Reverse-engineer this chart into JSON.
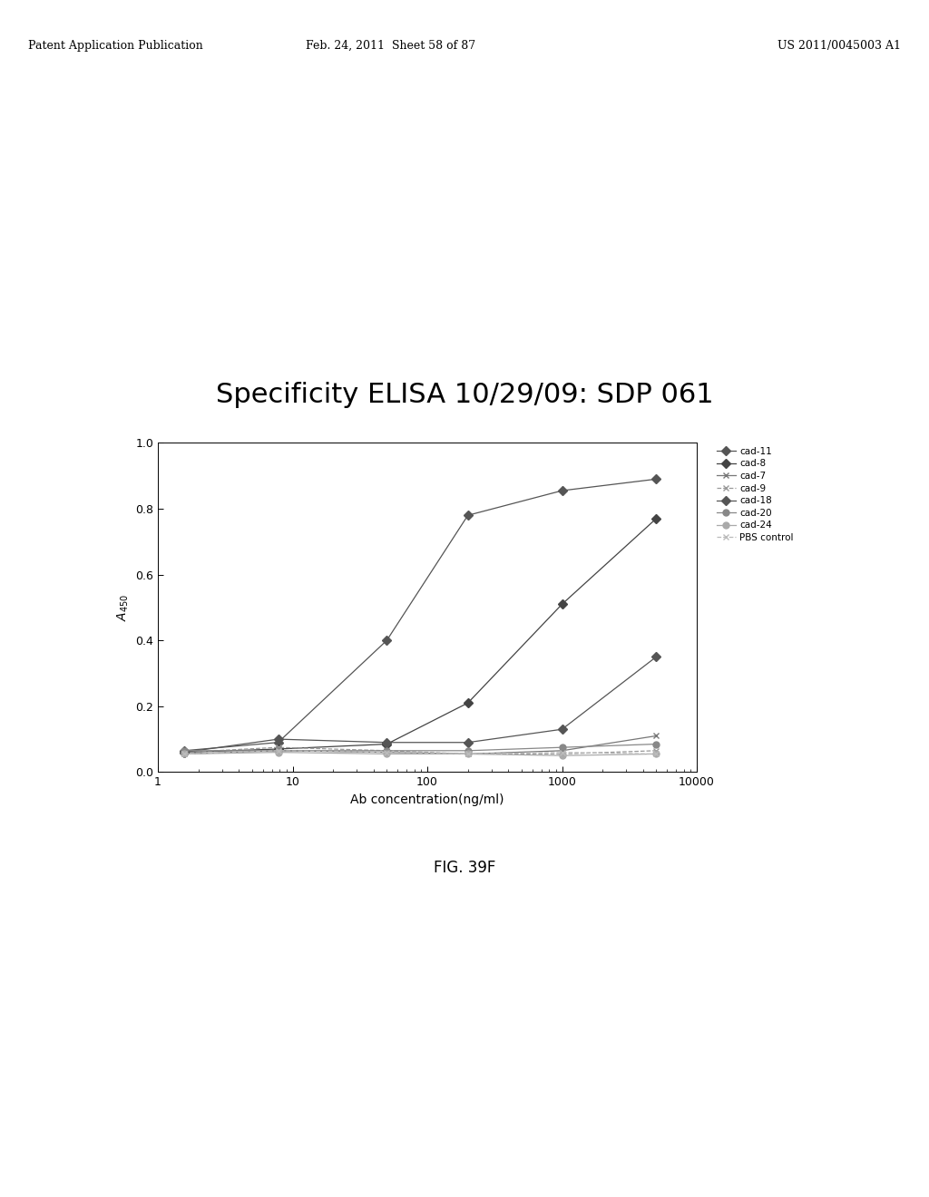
{
  "title": "Specificity ELISA 10/29/09: SDP 061",
  "xlabel": "Ab concentration(ng/ml)",
  "x_values": [
    1.56,
    7.8,
    50,
    200,
    1000,
    5000
  ],
  "series": {
    "cad-11": [
      0.065,
      0.09,
      0.4,
      0.78,
      0.855,
      0.89
    ],
    "cad-8": [
      0.06,
      0.07,
      0.085,
      0.21,
      0.51,
      0.77
    ],
    "cad-7": [
      0.055,
      0.065,
      0.06,
      0.055,
      0.065,
      0.11
    ],
    "cad-9": [
      0.06,
      0.075,
      0.065,
      0.055,
      0.055,
      0.065
    ],
    "cad-18": [
      0.06,
      0.1,
      0.09,
      0.09,
      0.13,
      0.35
    ],
    "cad-20": [
      0.065,
      0.065,
      0.065,
      0.065,
      0.075,
      0.085
    ],
    "cad-24": [
      0.055,
      0.06,
      0.055,
      0.055,
      0.05,
      0.055
    ],
    "PBS control": [
      0.055,
      0.065,
      0.06,
      0.055,
      0.06,
      0.055
    ]
  },
  "markers": {
    "cad-11": "D",
    "cad-8": "D",
    "cad-7": "x",
    "cad-9": "x",
    "cad-18": "D",
    "cad-20": "o",
    "cad-24": "o",
    "PBS control": "x"
  },
  "colors": {
    "cad-11": "#555555",
    "cad-8": "#444444",
    "cad-7": "#777777",
    "cad-9": "#999999",
    "cad-18": "#555555",
    "cad-20": "#888888",
    "cad-24": "#aaaaaa",
    "PBS control": "#bbbbbb"
  },
  "linestyles": {
    "cad-11": "-",
    "cad-8": "-",
    "cad-7": "-",
    "cad-9": "--",
    "cad-18": "-",
    "cad-20": "-",
    "cad-24": "-",
    "PBS control": "--"
  },
  "ylim": [
    0.0,
    1.0
  ],
  "yticks": [
    0.0,
    0.2,
    0.4,
    0.6,
    0.8,
    1.0
  ],
  "background": "#ffffff",
  "fig_caption": "FIG. 39F",
  "header_left": "Patent Application Publication",
  "header_mid": "Feb. 24, 2011  Sheet 58 of 87",
  "header_right": "US 2011/0045003 A1"
}
